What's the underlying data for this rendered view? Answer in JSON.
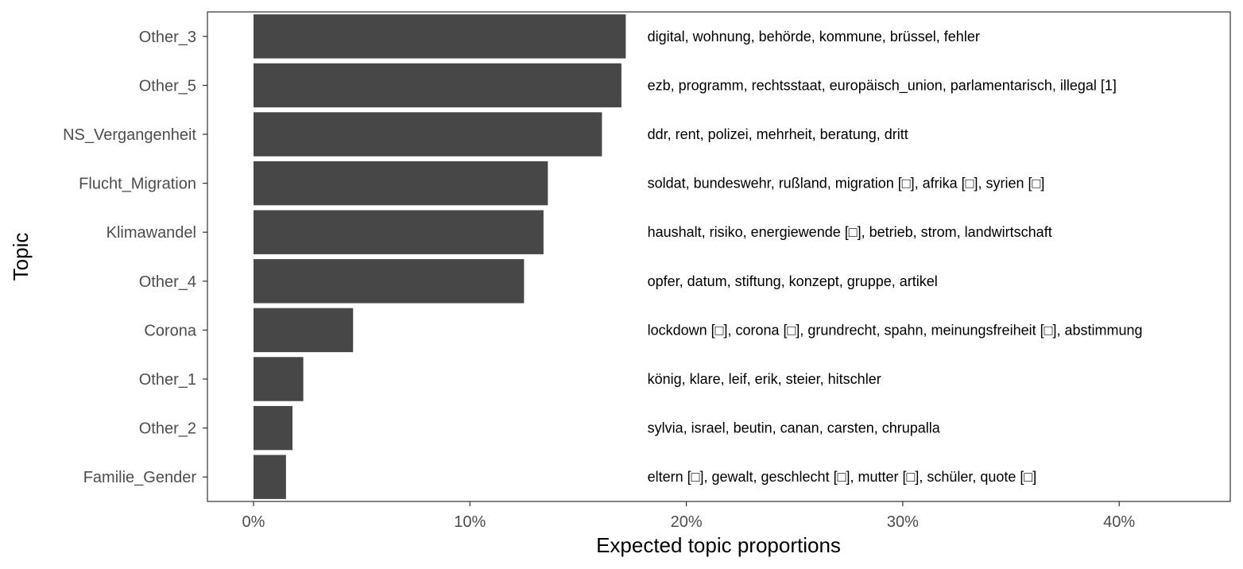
{
  "chart_data": {
    "type": "bar",
    "orientation": "horizontal",
    "xlabel": "Expected topic proportions",
    "ylabel": "Topic",
    "xlim": [
      -0.021,
      0.45
    ],
    "xticks": [
      0,
      0.1,
      0.2,
      0.3,
      0.4
    ],
    "xtick_labels": [
      "0%",
      "10%",
      "20%",
      "30%",
      "40%"
    ],
    "grid": false,
    "legend": "none",
    "bar_color": "#474747",
    "categories": [
      "Other_3",
      "Other_5",
      "NS_Vergangenheit",
      "Flucht_Migration",
      "Klimawandel",
      "Other_4",
      "Corona",
      "Other_1",
      "Other_2",
      "Familie_Gender"
    ],
    "values": [
      0.172,
      0.17,
      0.161,
      0.136,
      0.134,
      0.125,
      0.046,
      0.023,
      0.018,
      0.015
    ],
    "annotations": [
      "digital, wohnung, behörde, kommune, brüssel, fehler",
      "ezb, programm, rechtsstaat, europäisch_union, parlamentarisch, illegal [1]",
      "ddr, rent, polizei, mehrheit, beratung, dritt",
      "soldat, bundeswehr, rußland, migration [□], afrika [□], syrien [□]",
      "haushalt, risiko, energiewende [□], betrieb, strom, landwirtschaft",
      "opfer, datum, stiftung, konzept, gruppe, artikel",
      "lockdown [□], corona [□], grundrecht, spahn, meinungsfreiheit [□], abstimmung",
      "könig, klare, leif, erik, steier, hitschler",
      "sylvia, israel, beutin, canan, carsten, chrupalla",
      "eltern [□], gewalt, geschlecht [□], mutter [□], schüler, quote [□]"
    ],
    "annotation_x": 0.182
  }
}
